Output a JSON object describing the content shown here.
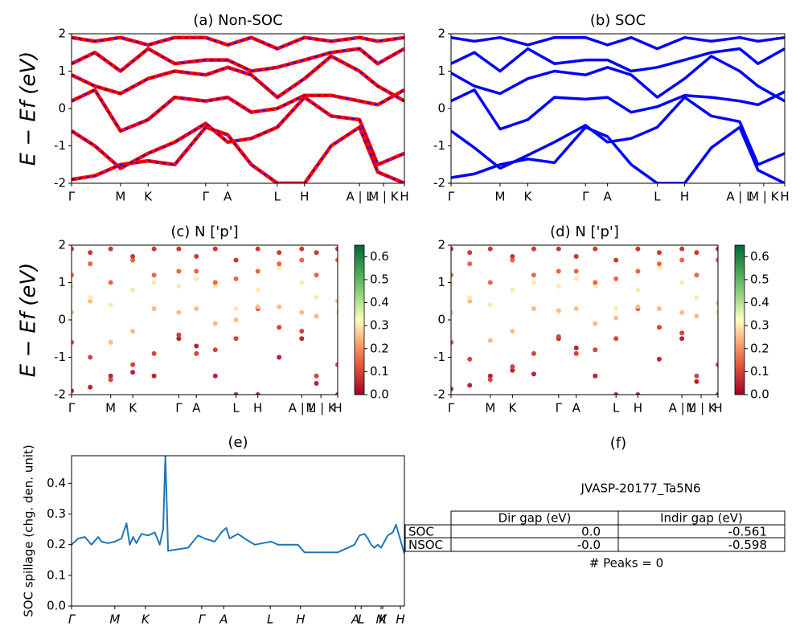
{
  "chart_data": [
    {
      "type": "line",
      "title": "(a) Non-SOC",
      "ylabel": "E − Ef (eV)",
      "xlim": [
        0,
        100
      ],
      "ylim": [
        -2,
        2
      ],
      "yticks": [
        -2,
        -1,
        0,
        1,
        2
      ],
      "xticks": [
        {
          "value": 0,
          "label": "Γ"
        },
        {
          "value": 14.7,
          "label": "M"
        },
        {
          "value": 23,
          "label": "K"
        },
        {
          "value": 40.3,
          "label": "Γ"
        },
        {
          "value": 46.9,
          "label": "A"
        },
        {
          "value": 61.8,
          "label": "L"
        },
        {
          "value": 70,
          "label": "H"
        },
        {
          "value": 86.5,
          "label": "A | L"
        },
        {
          "value": 93.7,
          "label": "M | K"
        },
        {
          "value": 100,
          "label": "H"
        }
      ],
      "x": [
        0,
        7,
        14.7,
        23,
        31,
        40.3,
        46.9,
        54,
        61.8,
        70,
        78,
        86.5,
        92,
        100
      ],
      "series": [
        {
          "color": "#ff0000",
          "dash_color": "#0000ff",
          "values": [
            -1.9,
            -1.8,
            -1.5,
            -1.4,
            -1.5,
            -0.5,
            -0.7,
            -1.5,
            -2,
            -2,
            -1,
            -0.5,
            -1.7,
            -2
          ]
        },
        {
          "color": "#ff0000",
          "dash_color": "#0000ff",
          "values": [
            -0.6,
            -1,
            -1.6,
            -1.2,
            -0.9,
            -0.4,
            -0.9,
            -0.8,
            -0.5,
            0.3,
            -0.2,
            -0.3,
            -1.5,
            -1.2
          ]
        },
        {
          "color": "#ff0000",
          "dash_color": "#0000ff",
          "values": [
            0.2,
            0.5,
            -0.6,
            -0.3,
            0.3,
            0.2,
            0.3,
            -0.1,
            0,
            0.35,
            0.35,
            0.2,
            0.1,
            0.5
          ]
        },
        {
          "color": "#ff0000",
          "dash_color": "#0000ff",
          "values": [
            0.9,
            0.6,
            0.4,
            0.8,
            1.0,
            0.9,
            1.1,
            0.9,
            0.3,
            0.8,
            1.4,
            1.0,
            0.6,
            0.2
          ]
        },
        {
          "color": "#ff0000",
          "dash_color": "#0000ff",
          "values": [
            1.2,
            1.5,
            1.0,
            1.6,
            1.2,
            1.3,
            1.3,
            1.0,
            1.1,
            1.3,
            1.5,
            1.6,
            1.2,
            1.6
          ]
        },
        {
          "color": "#ff0000",
          "dash_color": "#0000ff",
          "values": [
            1.9,
            1.8,
            1.9,
            1.7,
            1.9,
            1.9,
            1.7,
            1.9,
            1.6,
            1.9,
            1.8,
            1.9,
            1.8,
            1.9
          ]
        }
      ]
    },
    {
      "type": "line",
      "title": "(b) SOC",
      "xlim": [
        0,
        100
      ],
      "ylim": [
        -2,
        2
      ],
      "yticks": [
        -2,
        -1,
        0,
        1,
        2
      ],
      "xticks": [
        {
          "value": 0,
          "label": "Γ"
        },
        {
          "value": 14.7,
          "label": "M"
        },
        {
          "value": 23,
          "label": "K"
        },
        {
          "value": 40.3,
          "label": "Γ"
        },
        {
          "value": 46.9,
          "label": "A"
        },
        {
          "value": 61.8,
          "label": "L"
        },
        {
          "value": 70,
          "label": "H"
        },
        {
          "value": 86.5,
          "label": "A | L"
        },
        {
          "value": 93.7,
          "label": "M | K"
        },
        {
          "value": 100,
          "label": "H"
        }
      ],
      "x": [
        0,
        7,
        14.7,
        23,
        31,
        40.3,
        46.9,
        54,
        61.8,
        70,
        78,
        86.5,
        92,
        100
      ],
      "series": [
        {
          "color": "#0000ff",
          "values": [
            -1.85,
            -1.75,
            -1.5,
            -1.35,
            -1.45,
            -0.5,
            -0.75,
            -1.5,
            -2,
            -2,
            -1.05,
            -0.5,
            -1.65,
            -2
          ]
        },
        {
          "color": "#0000ff",
          "values": [
            -0.6,
            -1.05,
            -1.6,
            -1.25,
            -0.9,
            -0.45,
            -0.9,
            -0.8,
            -0.5,
            0.3,
            -0.2,
            -0.35,
            -1.5,
            -1.2
          ]
        },
        {
          "color": "#0000ff",
          "values": [
            0.2,
            0.5,
            -0.55,
            -0.3,
            0.3,
            0.25,
            0.3,
            -0.1,
            0.05,
            0.35,
            0.3,
            0.2,
            0.1,
            0.45
          ]
        },
        {
          "color": "#0000ff",
          "values": [
            0.95,
            0.6,
            0.4,
            0.8,
            1.0,
            0.9,
            1.1,
            0.9,
            0.3,
            0.8,
            1.4,
            1.0,
            0.6,
            0.2
          ]
        },
        {
          "color": "#0000ff",
          "values": [
            1.2,
            1.5,
            1.0,
            1.6,
            1.2,
            1.3,
            1.3,
            1.0,
            1.1,
            1.3,
            1.5,
            1.6,
            1.2,
            1.6
          ]
        },
        {
          "color": "#0000ff",
          "values": [
            1.9,
            1.8,
            1.9,
            1.7,
            1.9,
            1.9,
            1.7,
            1.9,
            1.6,
            1.9,
            1.8,
            1.9,
            1.8,
            1.9
          ]
        }
      ]
    },
    {
      "type": "scatter",
      "title": "(c)  N ['p']",
      "ylabel": "E − Ef (eV)",
      "xlim": [
        0,
        100
      ],
      "ylim": [
        -2,
        2
      ],
      "yticks": [
        -2,
        -1,
        0,
        1,
        2
      ],
      "colormap": "RdYlGn",
      "clim": [
        0,
        0.65
      ],
      "cticks": [
        {
          "value": 0,
          "label": "0.0"
        },
        0.1,
        0.2,
        0.3,
        0.4,
        0.5,
        0.6
      ],
      "xticks": [
        {
          "value": 0,
          "label": "Γ"
        },
        {
          "value": 14.7,
          "label": "M"
        },
        {
          "value": 23,
          "label": "K"
        },
        {
          "value": 40.3,
          "label": "Γ"
        },
        {
          "value": 46.9,
          "label": "A"
        },
        {
          "value": 61.8,
          "label": "L"
        },
        {
          "value": 70,
          "label": "H"
        },
        {
          "value": 86.5,
          "label": "A | L"
        },
        {
          "value": 93.7,
          "label": "M | K"
        },
        {
          "value": 100,
          "label": "H"
        }
      ],
      "x": [
        0,
        7,
        14.7,
        23,
        31,
        40.3,
        46.9,
        54,
        61.8,
        70,
        78,
        86.5,
        92,
        100
      ],
      "series": [
        {
          "weight": 0.05,
          "values": [
            -1.9,
            -1.8,
            -1.5,
            -1.4,
            -1.5,
            -0.5,
            -0.7,
            -1.5,
            -2,
            -2,
            -1,
            -0.5,
            -1.7,
            -2
          ]
        },
        {
          "weight": 0.1,
          "values": [
            -0.6,
            -1,
            -1.6,
            -1.2,
            -0.9,
            -0.4,
            -0.9,
            -0.8,
            -0.5,
            0.3,
            -0.2,
            -0.3,
            -1.5,
            -1.2
          ]
        },
        {
          "weight": 0.25,
          "values": [
            0.2,
            0.5,
            -0.6,
            -0.3,
            0.3,
            0.2,
            0.3,
            -0.1,
            0,
            0.35,
            0.35,
            0.2,
            0.1,
            0.5
          ]
        },
        {
          "weight": 0.3,
          "values": [
            0.9,
            0.6,
            0.4,
            0.8,
            1.0,
            0.9,
            1.1,
            0.9,
            0.3,
            0.8,
            1.4,
            1.0,
            0.6,
            0.2
          ]
        },
        {
          "weight": 0.15,
          "values": [
            1.2,
            1.5,
            1.0,
            1.6,
            1.2,
            1.3,
            1.3,
            1.0,
            1.1,
            1.3,
            1.5,
            1.6,
            1.2,
            1.6
          ]
        },
        {
          "weight": 0.08,
          "values": [
            1.9,
            1.8,
            1.9,
            1.7,
            1.9,
            1.9,
            1.7,
            1.9,
            1.6,
            1.9,
            1.8,
            1.9,
            1.8,
            1.9
          ]
        }
      ]
    },
    {
      "type": "scatter",
      "title": "(d) N ['p']",
      "xlim": [
        0,
        100
      ],
      "ylim": [
        -2,
        2
      ],
      "yticks": [
        -2,
        -1,
        0,
        1,
        2
      ],
      "colormap": "RdYlGn",
      "clim": [
        0,
        0.65
      ],
      "cticks": [
        {
          "value": 0,
          "label": "0.0"
        },
        0.1,
        0.2,
        0.3,
        0.4,
        0.5,
        0.6
      ],
      "xticks": [
        {
          "value": 0,
          "label": "Γ"
        },
        {
          "value": 14.7,
          "label": "M"
        },
        {
          "value": 23,
          "label": "K"
        },
        {
          "value": 40.3,
          "label": "Γ"
        },
        {
          "value": 46.9,
          "label": "A"
        },
        {
          "value": 61.8,
          "label": "L"
        },
        {
          "value": 70,
          "label": "H"
        },
        {
          "value": 86.5,
          "label": "A | L"
        },
        {
          "value": 93.7,
          "label": "M | K"
        },
        {
          "value": 100,
          "label": "H"
        }
      ],
      "x": [
        0,
        7,
        14.7,
        23,
        31,
        40.3,
        46.9,
        54,
        61.8,
        70,
        78,
        86.5,
        92,
        100
      ],
      "series": [
        {
          "weight": 0.05,
          "values": [
            -1.85,
            -1.75,
            -1.5,
            -1.35,
            -1.45,
            -0.5,
            -0.75,
            -1.5,
            -2,
            -2,
            -1.05,
            -0.5,
            -1.65,
            -2
          ]
        },
        {
          "weight": 0.1,
          "values": [
            -0.6,
            -1.05,
            -1.6,
            -1.25,
            -0.9,
            -0.45,
            -0.9,
            -0.8,
            -0.5,
            0.3,
            -0.2,
            -0.35,
            -1.5,
            -1.2
          ]
        },
        {
          "weight": 0.25,
          "values": [
            0.2,
            0.5,
            -0.55,
            -0.3,
            0.3,
            0.25,
            0.3,
            -0.1,
            0.05,
            0.35,
            0.3,
            0.2,
            0.1,
            0.45
          ]
        },
        {
          "weight": 0.3,
          "values": [
            0.95,
            0.6,
            0.4,
            0.8,
            1.0,
            0.9,
            1.1,
            0.9,
            0.3,
            0.8,
            1.4,
            1.0,
            0.6,
            0.2
          ]
        },
        {
          "weight": 0.15,
          "values": [
            1.2,
            1.5,
            1.0,
            1.6,
            1.2,
            1.3,
            1.3,
            1.0,
            1.1,
            1.3,
            1.5,
            1.6,
            1.2,
            1.6
          ]
        },
        {
          "weight": 0.08,
          "values": [
            1.9,
            1.8,
            1.9,
            1.7,
            1.9,
            1.9,
            1.7,
            1.9,
            1.6,
            1.9,
            1.8,
            1.9,
            1.8,
            1.9
          ]
        }
      ]
    },
    {
      "type": "line",
      "title": "(e)",
      "ylabel": "SOC spillage (chg. den. unit)",
      "xlim": [
        0,
        100
      ],
      "ylim": [
        0,
        0.49
      ],
      "yticks": [
        {
          "value": 0,
          "label": "0.0"
        },
        0.1,
        0.2,
        0.3,
        0.4
      ],
      "italic_xticks": true,
      "xticks": [
        {
          "value": 0,
          "label": "Γ"
        },
        {
          "value": 13,
          "label": "M"
        },
        {
          "value": 22.2,
          "label": "K"
        },
        {
          "value": 39.1,
          "label": "Γ"
        },
        {
          "value": 45.7,
          "label": "A"
        },
        {
          "value": 59.7,
          "label": "L"
        },
        {
          "value": 68.8,
          "label": "H"
        },
        {
          "value": 85.3,
          "label": "A"
        },
        {
          "value": 87,
          "label": "L"
        },
        {
          "value": 93,
          "label": "M"
        },
        {
          "value": 93.5,
          "label": "K"
        },
        {
          "value": 98.8,
          "label": "H"
        }
      ],
      "x": [
        0,
        2,
        4,
        6,
        8,
        9,
        11,
        13,
        15,
        16.5,
        17.5,
        18.5,
        19.5,
        21,
        23,
        25,
        26.5,
        27.5,
        28.2,
        29,
        35,
        38,
        40,
        43,
        45,
        46.5,
        47.5,
        50,
        52,
        55,
        60,
        62,
        64,
        68,
        70,
        75,
        80,
        85,
        86.5,
        88,
        89,
        90,
        91,
        92,
        93,
        95,
        96.5,
        97.5,
        100
      ],
      "series": [
        {
          "color": "#1f77b4",
          "values": [
            0.2,
            0.22,
            0.225,
            0.2,
            0.225,
            0.21,
            0.205,
            0.21,
            0.22,
            0.27,
            0.2,
            0.225,
            0.205,
            0.235,
            0.23,
            0.24,
            0.2,
            0.25,
            0.49,
            0.18,
            0.19,
            0.23,
            0.22,
            0.21,
            0.24,
            0.255,
            0.22,
            0.235,
            0.22,
            0.2,
            0.21,
            0.2,
            0.2,
            0.2,
            0.175,
            0.175,
            0.175,
            0.2,
            0.23,
            0.235,
            0.22,
            0.2,
            0.19,
            0.2,
            0.19,
            0.23,
            0.24,
            0.265,
            0.17
          ]
        }
      ]
    },
    {
      "type": "table",
      "title": "(f)",
      "subtitle": "JVASP-20177_Ta5N6",
      "columns": [
        "Dir gap (eV)",
        "Indir gap (eV)"
      ],
      "rows": [
        {
          "name": "SOC",
          "values": [
            0,
            -0.561
          ],
          "value_labels": [
            "0.0",
            "-0.561"
          ]
        },
        {
          "name": "NSOC",
          "values": [
            0,
            -0.598
          ],
          "value_labels": [
            "-0.0",
            "-0.598"
          ]
        }
      ],
      "note": "# Peaks = 0"
    }
  ]
}
